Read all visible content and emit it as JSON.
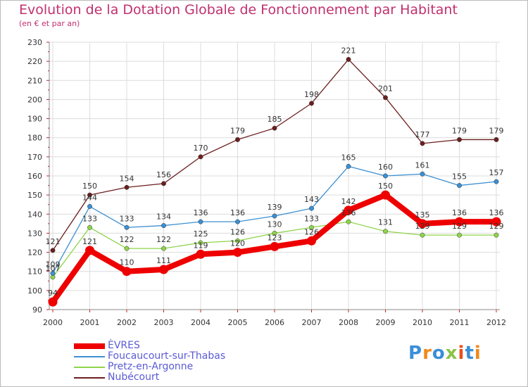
{
  "chart_data": {
    "type": "line",
    "title": "Evolution de la Dotation Globale de Fonctionnement par Habitant",
    "subtitle": "(en € et par an)",
    "xlabel": "",
    "ylabel": "",
    "ylim": [
      90,
      230
    ],
    "yticks": [
      90,
      100,
      110,
      120,
      130,
      140,
      150,
      160,
      170,
      180,
      190,
      200,
      210,
      220,
      230
    ],
    "categories": [
      "2000",
      "2001",
      "2002",
      "2003",
      "2004",
      "2005",
      "2006",
      "2007",
      "2008",
      "2009",
      "2010",
      "2011",
      "2012"
    ],
    "series": [
      {
        "name": "ÈVRES",
        "color": "#ee0000",
        "values": [
          94,
          121,
          110,
          111,
          119,
          120,
          123,
          126,
          142,
          150,
          135,
          136,
          136
        ]
      },
      {
        "name": "Foucaucourt-sur-Thabas",
        "color": "#3c8fd2",
        "values": [
          109,
          144,
          133,
          134,
          136,
          136,
          139,
          143,
          165,
          160,
          161,
          155,
          157
        ]
      },
      {
        "name": "Pretz-en-Argonne",
        "color": "#8fd44a",
        "values": [
          107,
          133,
          122,
          122,
          125,
          126,
          130,
          133,
          136,
          131,
          129,
          129,
          129
        ]
      },
      {
        "name": "Nubécourt",
        "color": "#6b1e1e",
        "values": [
          121,
          150,
          154,
          156,
          170,
          179,
          185,
          198,
          221,
          201,
          177,
          179,
          179
        ]
      }
    ],
    "legend_position": "bottom-left",
    "grid": true
  },
  "logo": {
    "text": "Proxiti",
    "colors": [
      "#3a8fd8",
      "#f08a1c",
      "#3a8fd8",
      "#8bc34a",
      "#e84e1b",
      "#3a8fd8",
      "#f08a1c"
    ]
  }
}
